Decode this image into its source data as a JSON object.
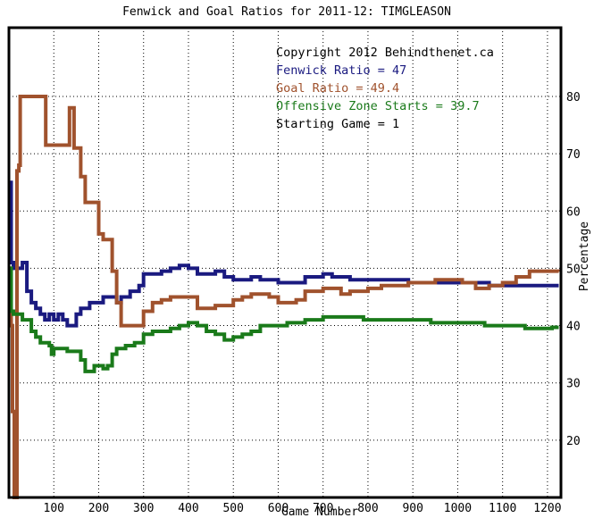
{
  "chart_data": {
    "type": "line",
    "title": "Fenwick and Goal Ratios for 2011-12: TIMGLEASON",
    "xlabel": "Game Number",
    "ylabel": "Percentage",
    "xlim": [
      0,
      1230
    ],
    "ylim": [
      10,
      92
    ],
    "x_ticks": [
      100,
      200,
      300,
      400,
      500,
      600,
      700,
      800,
      900,
      1000,
      1100,
      1200
    ],
    "y_ticks": [
      20,
      30,
      40,
      50,
      60,
      70,
      80
    ],
    "grid": "dotted",
    "annotations": [
      {
        "text": "Copyright 2012 Behindthenet.ca",
        "color": "#000000"
      },
      {
        "text": "Fenwick Ratio = 47",
        "color": "#1a1a80"
      },
      {
        "text": "Goal Ratio = 49.4",
        "color": "#a0522d"
      },
      {
        "text": "Offensive Zone Starts = 39.7",
        "color": "#1a7a1a"
      },
      {
        "text": "Starting Game = 1",
        "color": "#000000"
      }
    ],
    "series": [
      {
        "name": "Fenwick Ratio",
        "color": "#1a1a80",
        "x": [
          1,
          5,
          10,
          20,
          30,
          40,
          50,
          60,
          70,
          80,
          90,
          100,
          110,
          120,
          130,
          140,
          150,
          160,
          170,
          180,
          190,
          200,
          210,
          220,
          230,
          240,
          250,
          260,
          270,
          280,
          290,
          300,
          320,
          340,
          360,
          380,
          400,
          420,
          440,
          460,
          480,
          500,
          520,
          540,
          560,
          580,
          600,
          620,
          640,
          660,
          680,
          700,
          720,
          740,
          760,
          780,
          800,
          830,
          860,
          890,
          920,
          950,
          980,
          1010,
          1040,
          1070,
          1100,
          1130,
          1160,
          1190,
          1210,
          1225
        ],
        "y": [
          65,
          51,
          50,
          50,
          51,
          46,
          44,
          43,
          42,
          41,
          42,
          41,
          42,
          41,
          40,
          40,
          42,
          43,
          43,
          44,
          44,
          44,
          45,
          45,
          45,
          44,
          45,
          45,
          46,
          46,
          47,
          49,
          49,
          49.5,
          50,
          50.5,
          50,
          49,
          49,
          49.5,
          48.5,
          48,
          48,
          48.5,
          48,
          48,
          47.5,
          47.5,
          47.5,
          48.5,
          48.5,
          49,
          48.5,
          48.5,
          48,
          48,
          48,
          48,
          48,
          47.5,
          47.5,
          47.5,
          47.5,
          47.5,
          47.5,
          47,
          47,
          47,
          47,
          47,
          47,
          47
        ]
      },
      {
        "name": "Goal Ratio",
        "color": "#a0522d",
        "x": [
          1,
          5,
          8,
          12,
          15,
          18,
          22,
          25,
          30,
          50,
          80,
          82,
          100,
          120,
          130,
          135,
          140,
          145,
          150,
          160,
          170,
          180,
          195,
          200,
          210,
          220,
          230,
          240,
          250,
          260,
          270,
          280,
          290,
          300,
          320,
          340,
          360,
          380,
          400,
          420,
          440,
          460,
          480,
          500,
          520,
          540,
          560,
          580,
          600,
          620,
          640,
          660,
          680,
          700,
          720,
          740,
          760,
          780,
          800,
          830,
          860,
          890,
          920,
          950,
          980,
          1010,
          1040,
          1070,
          1100,
          1130,
          1160,
          1190,
          1210,
          1225
        ],
        "y": [
          50,
          40,
          25,
          10,
          10,
          67,
          68,
          80,
          80,
          80,
          80,
          71.5,
          71.5,
          71.5,
          71.5,
          78,
          78,
          71,
          71,
          66,
          61.5,
          61.5,
          61.5,
          56,
          55,
          55,
          49.5,
          44,
          40,
          40,
          40,
          40,
          40,
          42.5,
          44,
          44.5,
          45,
          45,
          45,
          43,
          43,
          43.5,
          43.5,
          44.5,
          45,
          45.5,
          45.5,
          45,
          44,
          44,
          44.5,
          46,
          46,
          46.5,
          46.5,
          45.5,
          46,
          46,
          46.5,
          47,
          47,
          47.5,
          47.5,
          48,
          48,
          47.5,
          46.5,
          47,
          47.5,
          48.5,
          49.5,
          49.5,
          49.5,
          49.4
        ]
      },
      {
        "name": "Offensive Zone Starts",
        "color": "#1a7a1a",
        "x": [
          1,
          5,
          10,
          20,
          30,
          40,
          50,
          60,
          70,
          80,
          90,
          95,
          100,
          110,
          120,
          130,
          140,
          150,
          160,
          170,
          180,
          190,
          200,
          210,
          220,
          230,
          240,
          250,
          260,
          280,
          300,
          320,
          340,
          360,
          380,
          400,
          420,
          440,
          460,
          480,
          500,
          520,
          540,
          560,
          580,
          600,
          620,
          640,
          660,
          680,
          700,
          730,
          760,
          790,
          820,
          850,
          880,
          910,
          940,
          970,
          1000,
          1030,
          1060,
          1090,
          1120,
          1150,
          1180,
          1210,
          1225
        ],
        "y": [
          50,
          42.5,
          42,
          42,
          41,
          41,
          39,
          38,
          37,
          37,
          36.5,
          35,
          36,
          36,
          36,
          35.5,
          35.5,
          35.5,
          34,
          32,
          32,
          33,
          33,
          32.5,
          33,
          35,
          36,
          36,
          36.5,
          37,
          38.5,
          39,
          39,
          39.5,
          40,
          40.5,
          40,
          39,
          38.5,
          37.5,
          38,
          38.5,
          39,
          40,
          40,
          40,
          40.5,
          40.5,
          41,
          41,
          41.5,
          41.5,
          41.5,
          41,
          41,
          41,
          41,
          41,
          40.5,
          40.5,
          40.5,
          40.5,
          40,
          40,
          40,
          39.5,
          39.5,
          39.7,
          39.7
        ]
      }
    ]
  }
}
